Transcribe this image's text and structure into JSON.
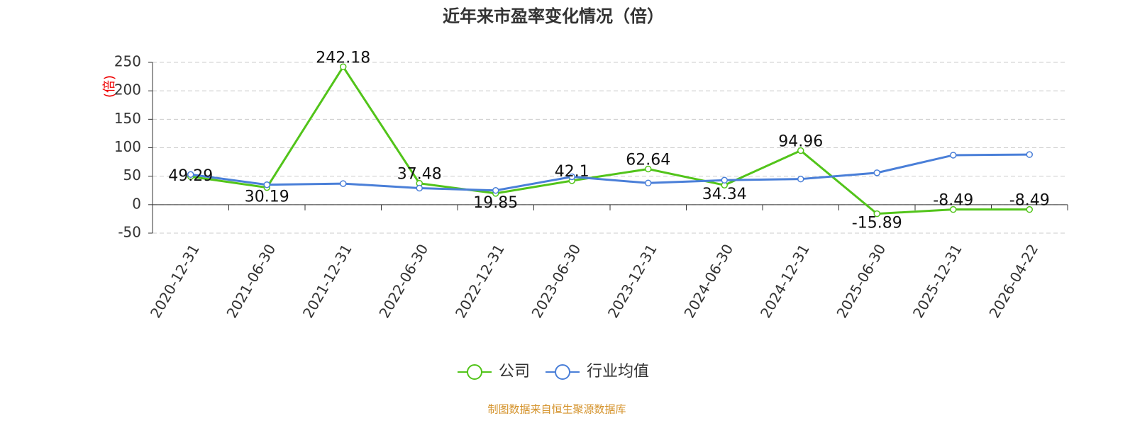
{
  "chart_data": {
    "type": "line",
    "title": "近年来市盈率变化情况（倍）",
    "y_label": "(倍)",
    "categories": [
      "2020-12-31",
      "2021-06-30",
      "2021-12-31",
      "2022-06-30",
      "2022-12-31",
      "2023-06-30",
      "2023-12-31",
      "2024-06-30",
      "2024-12-31",
      "2025-06-30",
      "2025-12-31",
      "2026-04-22"
    ],
    "series": [
      {
        "name": "公司",
        "color": "#52c41a",
        "values": [
          49.29,
          30.19,
          242.18,
          37.48,
          19.85,
          42.1,
          62.64,
          34.34,
          94.96,
          -15.89,
          -8.49,
          -8.49
        ],
        "show_labels": true
      },
      {
        "name": "行业均值",
        "color": "#4a7fd8",
        "values": [
          53,
          35,
          37,
          29,
          25,
          49,
          38,
          43,
          45,
          56,
          87,
          88
        ],
        "show_labels": false
      }
    ],
    "ylim": [
      -50,
      250
    ],
    "yticks": [
      -50,
      0,
      50,
      100,
      150,
      200,
      250
    ],
    "grid": true,
    "source": "制图数据来自恒生聚源数据库"
  }
}
